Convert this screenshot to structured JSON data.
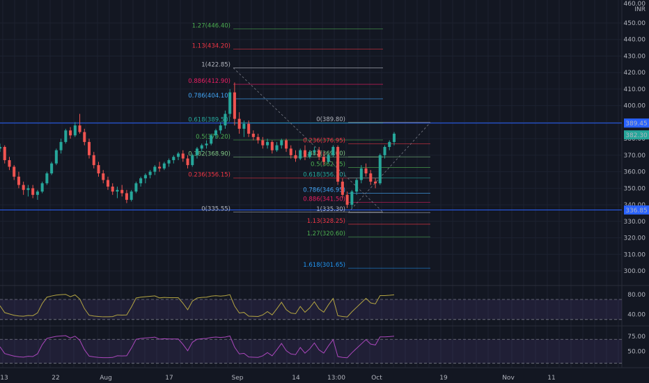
{
  "chart_data": [
    {
      "type": "candlestick",
      "currency": "INR",
      "price_axis_ticks": [
        "450.00",
        "440.00",
        "430.00",
        "420.00",
        "410.00",
        "400.00",
        "390.00",
        "380.00",
        "370.00",
        "360.00",
        "350.00",
        "340.00",
        "330.00",
        "320.00",
        "310.00",
        "300.00"
      ],
      "price_axis_top_label": "460.00",
      "ylim": [
        292,
        458
      ],
      "time_axis_labels": [
        "13",
        "22",
        "Aug",
        "17",
        "Sep",
        "14",
        "13:00",
        "Oct",
        "19",
        "Nov",
        "11"
      ],
      "current_price": {
        "label": "382.30",
        "value": 382.3,
        "color": "#26a69a"
      },
      "line_389": {
        "label": "389.45",
        "value": 389.45,
        "color": "#2962ff"
      },
      "line_336": {
        "label": "336.85",
        "value": 336.85,
        "color": "#2962ff"
      },
      "fib_high": [
        {
          "label": "1.27(446.40)",
          "value": 446.4,
          "color": "#4caf50"
        },
        {
          "label": "1.13(434.20)",
          "value": 434.2,
          "color": "#f23645"
        },
        {
          "label": "1(422.85)",
          "value": 422.85,
          "color": "#b2b5be"
        },
        {
          "label": "0.886(412.90)",
          "value": 412.9,
          "color": "#e91e63"
        },
        {
          "label": "0.786(404.10)",
          "value": 404.1,
          "color": "#42a5f5"
        },
        {
          "label": "0.618(389.50)",
          "value": 389.5,
          "color": "#26a69a"
        },
        {
          "label": "0.5(379.20)",
          "value": 379.2,
          "color": "#4caf50"
        },
        {
          "label": "0.382(368.90)",
          "value": 368.9,
          "color": "#81c784"
        },
        {
          "label": "0.236(356.15)",
          "value": 356.15,
          "color": "#f23645"
        },
        {
          "label": "0(335.55)",
          "value": 335.55,
          "color": "#b2b5be"
        }
      ],
      "fib_low": [
        {
          "label": "0(389.80)",
          "value": 389.8,
          "color": "#b2b5be"
        },
        {
          "label": "0.236(376.95)",
          "value": 376.95,
          "color": "#f23645"
        },
        {
          "label": "0.382(369.00)",
          "value": 369.0,
          "color": "#81c784"
        },
        {
          "label": "0.5(362.55)",
          "value": 362.55,
          "color": "#4caf50"
        },
        {
          "label": "0.618(356.30)",
          "value": 356.3,
          "color": "#26a69a"
        },
        {
          "label": "0.786(346.95)",
          "value": 346.95,
          "color": "#42a5f5"
        },
        {
          "label": "0.886(341.50)",
          "value": 341.5,
          "color": "#e91e63"
        },
        {
          "label": "1(335.30)",
          "value": 335.3,
          "color": "#b2b5be"
        },
        {
          "label": "1.13(328.25)",
          "value": 328.25,
          "color": "#f23645"
        },
        {
          "label": "1.27(320.60)",
          "value": 320.6,
          "color": "#4caf50"
        },
        {
          "label": "1.618(301.65)",
          "value": 301.65,
          "color": "#2196f3"
        }
      ],
      "candles": [
        [
          374,
          377,
          372,
          375
        ],
        [
          375,
          376,
          365,
          367
        ],
        [
          367,
          369,
          361,
          363
        ],
        [
          363,
          364,
          355,
          357
        ],
        [
          357,
          360,
          350,
          352
        ],
        [
          352,
          354,
          346,
          349
        ],
        [
          349,
          352,
          345,
          350
        ],
        [
          350,
          352,
          344,
          346
        ],
        [
          346,
          349,
          343,
          348
        ],
        [
          348,
          354,
          347,
          353
        ],
        [
          353,
          360,
          352,
          359
        ],
        [
          359,
          366,
          358,
          365
        ],
        [
          365,
          374,
          364,
          373
        ],
        [
          373,
          380,
          371,
          378
        ],
        [
          378,
          386,
          377,
          385
        ],
        [
          385,
          387,
          380,
          382
        ],
        [
          382,
          390,
          381,
          388
        ],
        [
          388,
          395,
          383,
          384
        ],
        [
          384,
          386,
          376,
          378
        ],
        [
          378,
          380,
          368,
          370
        ],
        [
          370,
          372,
          362,
          364
        ],
        [
          364,
          366,
          357,
          359
        ],
        [
          359,
          361,
          353,
          355
        ],
        [
          355,
          357,
          349,
          351
        ],
        [
          351,
          353,
          346,
          348
        ],
        [
          348,
          351,
          344,
          349
        ],
        [
          349,
          352,
          345,
          347
        ],
        [
          347,
          349,
          341,
          343
        ],
        [
          343,
          349,
          342,
          348
        ],
        [
          348,
          354,
          347,
          353
        ],
        [
          353,
          357,
          351,
          356
        ],
        [
          356,
          359,
          353,
          358
        ],
        [
          358,
          361,
          356,
          360
        ],
        [
          360,
          364,
          358,
          363
        ],
        [
          363,
          366,
          360,
          362
        ],
        [
          362,
          366,
          361,
          365
        ],
        [
          365,
          368,
          363,
          367
        ],
        [
          367,
          370,
          365,
          369
        ],
        [
          369,
          372,
          367,
          371
        ],
        [
          371,
          373,
          366,
          368
        ],
        [
          368,
          370,
          362,
          364
        ],
        [
          364,
          371,
          363,
          370
        ],
        [
          370,
          375,
          368,
          374
        ],
        [
          374,
          377,
          372,
          376
        ],
        [
          376,
          379,
          374,
          377
        ],
        [
          377,
          383,
          376,
          382
        ],
        [
          382,
          386,
          380,
          385
        ],
        [
          385,
          390,
          383,
          388
        ],
        [
          388,
          397,
          386,
          395
        ],
        [
          395,
          410,
          393,
          408
        ],
        [
          408,
          414,
          388,
          392
        ],
        [
          392,
          396,
          383,
          386
        ],
        [
          386,
          391,
          381,
          389
        ],
        [
          389,
          391,
          381,
          383
        ],
        [
          383,
          385,
          379,
          381
        ],
        [
          381,
          383,
          377,
          379
        ],
        [
          379,
          381,
          374,
          376
        ],
        [
          376,
          380,
          374,
          378
        ],
        [
          378,
          379,
          371,
          373
        ],
        [
          373,
          378,
          372,
          376
        ],
        [
          376,
          380,
          374,
          379
        ],
        [
          379,
          380,
          372,
          374
        ],
        [
          374,
          376,
          368,
          370
        ],
        [
          370,
          373,
          366,
          368
        ],
        [
          368,
          374,
          367,
          373
        ],
        [
          373,
          376,
          367,
          369
        ],
        [
          369,
          373,
          368,
          372
        ],
        [
          372,
          375,
          370,
          373
        ],
        [
          373,
          375,
          367,
          369
        ],
        [
          369,
          372,
          364,
          366
        ],
        [
          366,
          371,
          365,
          370
        ],
        [
          370,
          376,
          369,
          375
        ],
        [
          375,
          376,
          352,
          354
        ],
        [
          354,
          356,
          344,
          346
        ],
        [
          346,
          348,
          338,
          340
        ],
        [
          340,
          349,
          338,
          348
        ],
        [
          348,
          356,
          346,
          355
        ],
        [
          355,
          364,
          353,
          362
        ],
        [
          362,
          365,
          357,
          359
        ],
        [
          359,
          361,
          352,
          354
        ],
        [
          354,
          356,
          350,
          353
        ],
        [
          353,
          371,
          352,
          370
        ],
        [
          370,
          376,
          368,
          375
        ],
        [
          375,
          379,
          373,
          378
        ],
        [
          378,
          384,
          376,
          383
        ]
      ],
      "rsi": {
        "levels": [
          "80.00",
          "40.00"
        ],
        "band": [
          70,
          30
        ],
        "ylim": [
          20,
          95
        ]
      },
      "indicator2": {
        "levels": [
          "75.00",
          "50.00"
        ],
        "band": [
          70,
          30
        ],
        "ylim": [
          25,
          90
        ]
      }
    }
  ]
}
